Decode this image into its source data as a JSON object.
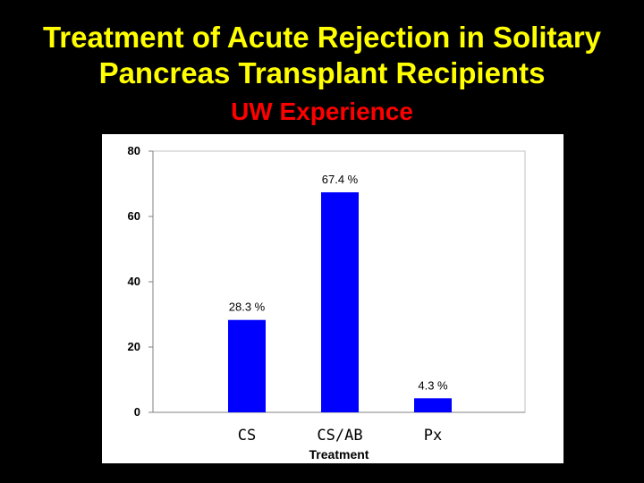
{
  "slide": {
    "title_line1": "Treatment of Acute Rejection in Solitary",
    "title_line2": "Pancreas Transplant Recipients",
    "subtitle": "UW Experience"
  },
  "colors": {
    "background": "#000000",
    "title": "#FFFF00",
    "subtitle": "#FF0000",
    "bar": "#0000FF",
    "plot_background": "#FFFFFF"
  },
  "chart_data": {
    "type": "bar",
    "title": "",
    "xlabel": "Treatment",
    "ylabel": "",
    "categories": [
      "CS",
      "CS/AB",
      "Px"
    ],
    "values": [
      28.3,
      67.4,
      4.3
    ],
    "data_labels": [
      "28.3 %",
      "67.4 %",
      "4.3 %"
    ],
    "ylim": [
      0,
      80
    ],
    "yticks": [
      0,
      20,
      40,
      60,
      80
    ],
    "ytick_labels": [
      "0",
      "20",
      "40",
      "60",
      "80"
    ],
    "grid": false,
    "legend": "none"
  }
}
